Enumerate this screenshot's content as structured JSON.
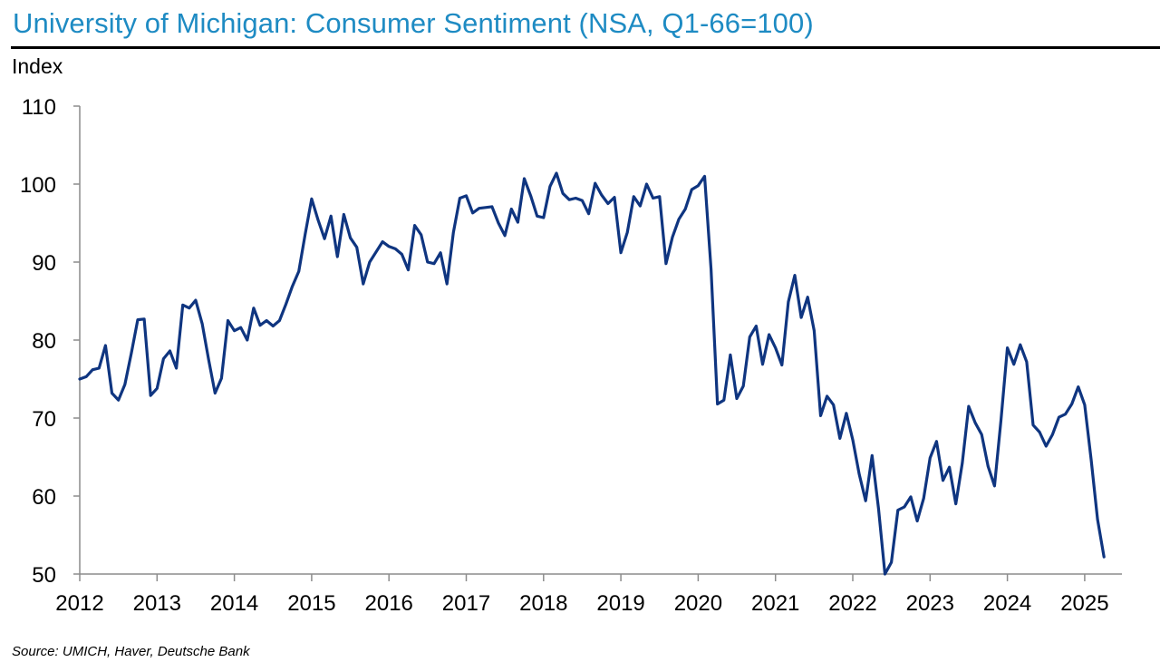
{
  "chart_data": {
    "type": "line",
    "title": "University of Michigan: Consumer Sentiment (NSA, Q1-66=100)",
    "ylabel": "Index",
    "xlabel": "",
    "source": "Source: UMICH, Haver, Deutsche Bank",
    "ylim": [
      50,
      110
    ],
    "yticks": [
      110,
      100,
      90,
      80,
      70,
      60,
      50
    ],
    "xlim": [
      "2012-01",
      "2025-06"
    ],
    "xticks": [
      "2012",
      "2013",
      "2014",
      "2015",
      "2016",
      "2017",
      "2018",
      "2019",
      "2020",
      "2021",
      "2022",
      "2023",
      "2024",
      "2025"
    ],
    "grid": false,
    "legend": "none",
    "frequency": "monthly",
    "start": "2012-01",
    "series": [
      {
        "name": "Consumer Sentiment",
        "color": "#0f3580",
        "values": [
          75.0,
          75.3,
          76.2,
          76.4,
          79.3,
          73.2,
          72.3,
          74.3,
          78.3,
          82.6,
          82.7,
          72.9,
          73.8,
          77.6,
          78.6,
          76.4,
          84.5,
          84.1,
          85.1,
          82.1,
          77.5,
          73.2,
          75.1,
          82.5,
          81.2,
          81.6,
          80.0,
          84.1,
          81.9,
          82.5,
          81.8,
          82.5,
          84.6,
          86.9,
          88.8,
          93.6,
          98.1,
          95.4,
          93.0,
          95.9,
          90.7,
          96.1,
          93.1,
          91.9,
          87.2,
          90.0,
          91.3,
          92.6,
          92.0,
          91.7,
          91.0,
          89.0,
          94.7,
          93.5,
          90.0,
          89.8,
          91.2,
          87.2,
          93.8,
          98.2,
          98.5,
          96.3,
          96.9,
          97.0,
          97.1,
          95.0,
          93.4,
          96.8,
          95.1,
          100.7,
          98.5,
          95.9,
          95.7,
          99.7,
          101.4,
          98.8,
          98.0,
          98.2,
          97.9,
          96.2,
          100.1,
          98.6,
          97.5,
          98.3,
          91.2,
          93.8,
          98.4,
          97.2,
          100.0,
          98.2,
          98.4,
          89.8,
          93.2,
          95.5,
          96.8,
          99.3,
          99.8,
          101.0,
          89.1,
          71.8,
          72.3,
          78.1,
          72.5,
          74.1,
          80.4,
          81.8,
          76.9,
          80.7,
          79.0,
          76.8,
          84.9,
          88.3,
          82.9,
          85.5,
          81.2,
          70.3,
          72.8,
          71.7,
          67.4,
          70.6,
          67.2,
          62.8,
          59.4,
          65.2,
          58.4,
          50.0,
          51.5,
          58.2,
          58.6,
          59.9,
          56.8,
          59.7,
          64.9,
          67.0,
          62.0,
          63.7,
          59.0,
          64.2,
          71.5,
          69.4,
          67.9,
          63.8,
          61.3,
          69.7,
          79.0,
          76.9,
          79.4,
          77.2,
          69.1,
          68.2,
          66.4,
          67.9,
          70.1,
          70.5,
          71.8,
          74.0,
          71.7,
          64.7,
          57.0,
          52.2
        ]
      }
    ]
  }
}
